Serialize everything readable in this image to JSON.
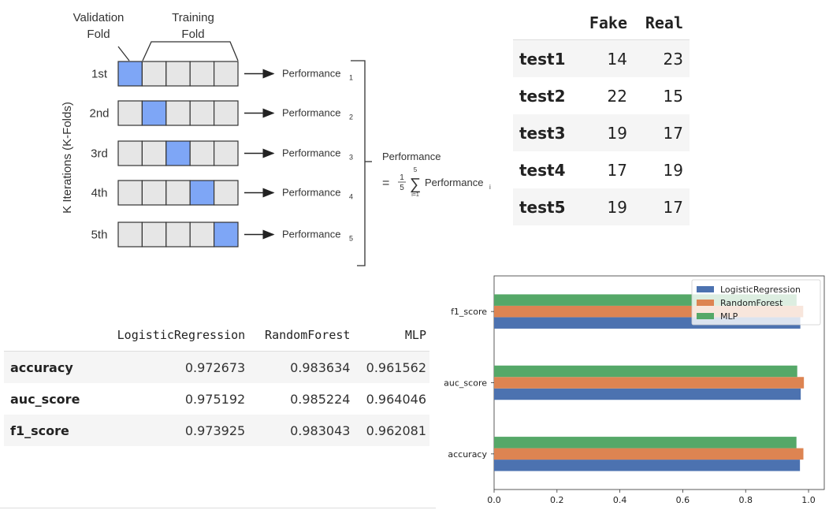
{
  "kfold": {
    "validation_label": [
      "Validation",
      "Fold"
    ],
    "training_label": [
      "Training",
      "Fold"
    ],
    "y_axis_label": "K Iterations (K-Folds)",
    "iterations": [
      {
        "label": "1st",
        "validation_index": 0,
        "performance": "Performance",
        "subscript": "1"
      },
      {
        "label": "2nd",
        "validation_index": 1,
        "performance": "Performance",
        "subscript": "2"
      },
      {
        "label": "3rd",
        "validation_index": 2,
        "performance": "Performance",
        "subscript": "3"
      },
      {
        "label": "4th",
        "validation_index": 3,
        "performance": "Performance",
        "subscript": "4"
      },
      {
        "label": "5th",
        "validation_index": 4,
        "performance": "Performance",
        "subscript": "5"
      }
    ],
    "fold_count": 5,
    "formula": {
      "title": "Performance",
      "equals": "=",
      "fraction_num": "1",
      "fraction_den": "5",
      "sum_upper": "5",
      "sum_lower": "i=1",
      "sum_symbol": "∑",
      "term": "Performance",
      "term_sub": "i"
    },
    "colors": {
      "validation": "#7ea6f6",
      "training": "#e6e6e6",
      "border": "#333333"
    }
  },
  "counts_table": {
    "columns": [
      "Fake",
      "Real"
    ],
    "rows": [
      {
        "label": "test1",
        "values": [
          "14",
          "23"
        ]
      },
      {
        "label": "test2",
        "values": [
          "22",
          "15"
        ]
      },
      {
        "label": "test3",
        "values": [
          "19",
          "17"
        ]
      },
      {
        "label": "test4",
        "values": [
          "17",
          "19"
        ]
      },
      {
        "label": "test5",
        "values": [
          "19",
          "17"
        ]
      }
    ]
  },
  "metrics_table": {
    "columns": [
      "LogisticRegression",
      "RandomForest",
      "MLP"
    ],
    "rows": [
      {
        "label": "accuracy",
        "values": [
          "0.972673",
          "0.983634",
          "0.961562"
        ]
      },
      {
        "label": "auc_score",
        "values": [
          "0.975192",
          "0.985224",
          "0.964046"
        ]
      },
      {
        "label": "f1_score",
        "values": [
          "0.973925",
          "0.983043",
          "0.962081"
        ]
      }
    ]
  },
  "chart_data": {
    "type": "bar",
    "orientation": "horizontal",
    "categories": [
      "accuracy",
      "auc_score",
      "f1_score"
    ],
    "series": [
      {
        "name": "LogisticRegression",
        "values": [
          0.972673,
          0.975192,
          0.973925
        ],
        "color": "#4c72b0"
      },
      {
        "name": "RandomForest",
        "values": [
          0.983634,
          0.985224,
          0.983043
        ],
        "color": "#dd8452"
      },
      {
        "name": "MLP",
        "values": [
          0.961562,
          0.964046,
          0.962081
        ],
        "color": "#55a868"
      }
    ],
    "xlim": [
      0,
      1.05
    ],
    "xticks": [
      "0.0",
      "0.2",
      "0.4",
      "0.6",
      "0.8",
      "1.0"
    ],
    "xtick_values": [
      0,
      0.2,
      0.4,
      0.6,
      0.8,
      1.0
    ],
    "legend_position": "top-right",
    "grid": false
  }
}
